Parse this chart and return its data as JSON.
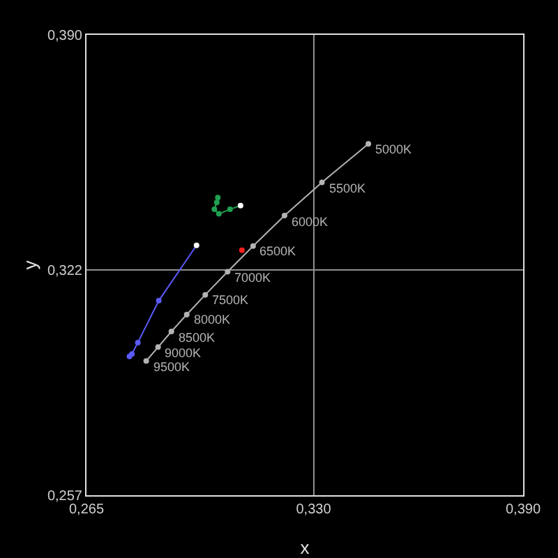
{
  "chart_data": {
    "type": "line",
    "xlabel": "x",
    "ylabel": "y",
    "xlim": [
      0.265,
      0.39
    ],
    "ylim": [
      0.257,
      0.39
    ],
    "xticks": [
      {
        "value": 0.265,
        "label": "0,265"
      },
      {
        "value": 0.33,
        "label": "0,330"
      },
      {
        "value": 0.39,
        "label": "0,390"
      }
    ],
    "yticks": [
      {
        "value": 0.257,
        "label": "0,257"
      },
      {
        "value": 0.322,
        "label": "0,322"
      },
      {
        "value": 0.39,
        "label": "0,390"
      }
    ],
    "annotations": [
      {
        "text": "5000K",
        "x": 0.3457,
        "y": 0.3585
      },
      {
        "text": "5500K",
        "x": 0.3324,
        "y": 0.3474
      },
      {
        "text": "6000K",
        "x": 0.3217,
        "y": 0.3378
      },
      {
        "text": "6500K",
        "x": 0.3127,
        "y": 0.329
      },
      {
        "text": "7000K",
        "x": 0.3054,
        "y": 0.3216
      },
      {
        "text": "7500K",
        "x": 0.299,
        "y": 0.3149
      },
      {
        "text": "8000K",
        "x": 0.2937,
        "y": 0.3092
      },
      {
        "text": "8500K",
        "x": 0.2893,
        "y": 0.3043
      },
      {
        "text": "9000K",
        "x": 0.2855,
        "y": 0.2998
      },
      {
        "text": "9500K",
        "x": 0.2821,
        "y": 0.2958
      }
    ],
    "grid": true,
    "marker": "circle",
    "line_style": "solid",
    "series": [
      {
        "color": "#b4b4b4",
        "x": [
          0.3457,
          0.3324,
          0.3217,
          0.3127,
          0.3054,
          0.299,
          0.2937,
          0.2893,
          0.2855,
          0.2821
        ],
        "values": [
          0.3585,
          0.3474,
          0.3378,
          0.329,
          0.3216,
          0.3149,
          0.3092,
          0.3043,
          0.2998,
          0.2958
        ]
      },
      {
        "type": "scatter",
        "color": "#ff2020",
        "x": [
          0.3095
        ],
        "values": [
          0.3278
        ]
      },
      {
        "color": "#20a050",
        "x": [
          0.3091,
          0.3061,
          0.3029,
          0.3016,
          0.3023,
          0.3026
        ],
        "values": [
          0.3407,
          0.3396,
          0.3383,
          0.3396,
          0.3416,
          0.343
        ],
        "colors": [
          "#ffffff",
          "#20a050",
          "#20a050",
          "#20a050",
          "#20a050",
          "#20a050"
        ]
      },
      {
        "color": "#5a5aff",
        "x": [
          0.2965,
          0.2857,
          0.2797,
          0.278,
          0.2773
        ],
        "values": [
          0.3292,
          0.3132,
          0.3011,
          0.2978,
          0.2971
        ],
        "colors": [
          "#ffffff",
          "#5a5aff",
          "#5a5aff",
          "#5a5aff",
          "#5a5aff"
        ]
      }
    ]
  }
}
